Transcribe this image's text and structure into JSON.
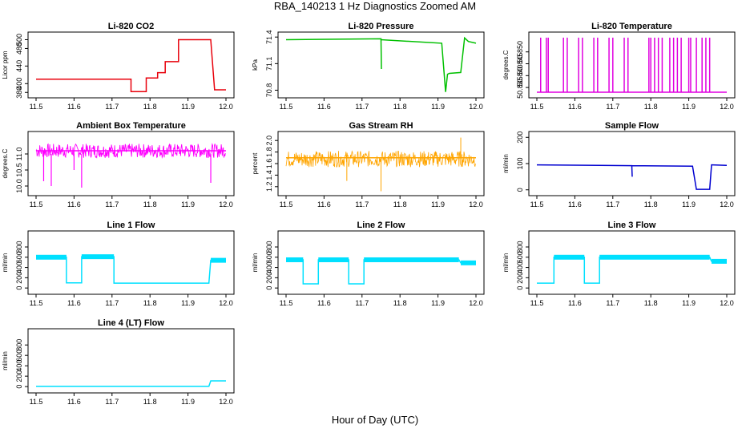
{
  "figure": {
    "title": "RBA_140213  1 Hz Diagnostics Zoomed AM",
    "xlabel": "Hour of Day (UTC)"
  },
  "chart_data": [
    {
      "type": "line",
      "title": "Li-820 CO2",
      "ylabel": "Licor ppm",
      "color": "#e8000b",
      "xlim": [
        11.5,
        12.0
      ],
      "ylim": [
        375,
        510
      ],
      "x_ticks": [
        "11.5",
        "11.6",
        "11.7",
        "11.8",
        "11.9",
        "12.0"
      ],
      "y_ticks": [
        "380",
        "400",
        "440",
        "480",
        "500"
      ],
      "series": [
        {
          "x": [
            11.5,
            11.75,
            11.75,
            11.79,
            11.79,
            11.82,
            11.82,
            11.84,
            11.84,
            11.875,
            11.875,
            11.96,
            11.97,
            12.0
          ],
          "y": [
            410,
            410,
            382,
            382,
            413,
            413,
            425,
            425,
            450,
            450,
            500,
            500,
            386,
            386
          ]
        }
      ]
    },
    {
      "type": "line",
      "title": "Li-820 Pressure",
      "ylabel": "kPa",
      "color": "#00c000",
      "xlim": [
        11.5,
        12.0
      ],
      "ylim": [
        70.75,
        71.42
      ],
      "x_ticks": [
        "11.5",
        "11.6",
        "11.7",
        "11.8",
        "11.9",
        "12.0"
      ],
      "y_ticks": [
        "70.8",
        "71.1",
        "71.4"
      ],
      "series": [
        {
          "x": [
            11.5,
            11.75,
            11.75,
            11.751,
            11.75,
            11.91,
            11.92,
            11.925,
            11.93,
            11.96,
            11.97,
            11.98,
            12.0
          ],
          "y": [
            71.37,
            71.38,
            71.37,
            71.04,
            71.37,
            71.33,
            70.78,
            70.98,
            70.99,
            71.0,
            71.39,
            71.35,
            71.33
          ]
        }
      ]
    },
    {
      "type": "line",
      "title": "Li-820 Temperature",
      "ylabel": "degrees.C",
      "color": "#e000e0",
      "xlim": [
        11.5,
        12.0
      ],
      "ylim": [
        50.832,
        50.857
      ],
      "x_ticks": [
        "11.5",
        "11.6",
        "11.7",
        "11.8",
        "11.9",
        "12.0"
      ],
      "y_ticks": [
        "50.835",
        "50.840",
        "50.845",
        "50.850"
      ],
      "series": [
        {
          "x": [
            11.5,
            12.0
          ],
          "y": [
            50.833,
            50.833
          ]
        }
      ]
    },
    {
      "type": "line",
      "title": "Ambient Box Temperature",
      "ylabel": "degrees.C",
      "color": "#ff00ff",
      "xlim": [
        11.5,
        12.0
      ],
      "ylim": [
        9.8,
        11.6
      ],
      "x_ticks": [
        "11.5",
        "11.6",
        "11.7",
        "11.8",
        "11.9",
        "12.0"
      ],
      "y_ticks": [
        "10.0",
        "10.5",
        "11.0"
      ],
      "series": [
        {
          "x": [
            11.5,
            12.0
          ],
          "y": [
            11.1,
            11.1
          ]
        }
      ]
    },
    {
      "type": "line",
      "title": "Gas Stream RH",
      "ylabel": "percent",
      "color": "#ffa500",
      "xlim": [
        11.5,
        12.0
      ],
      "ylim": [
        1.1,
        2.1
      ],
      "x_ticks": [
        "11.5",
        "11.6",
        "11.7",
        "11.8",
        "11.9",
        "12.0"
      ],
      "y_ticks": [
        "1.2",
        "1.4",
        "1.6",
        "1.8",
        "2.0"
      ],
      "series": [
        {
          "x": [
            11.5,
            12.0
          ],
          "y": [
            1.7,
            1.7
          ]
        }
      ]
    },
    {
      "type": "line",
      "title": "Sample Flow",
      "ylabel": "ml/min",
      "color": "#0000d0",
      "xlim": [
        11.5,
        12.0
      ],
      "ylim": [
        -10,
        210
      ],
      "x_ticks": [
        "11.5",
        "11.6",
        "11.7",
        "11.8",
        "11.9",
        "12.0"
      ],
      "y_ticks": [
        "0",
        "100",
        "200"
      ],
      "series": [
        {
          "x": [
            11.5,
            11.75,
            11.75,
            11.751,
            11.75,
            11.91,
            11.92,
            11.955,
            11.96,
            12.0
          ],
          "y": [
            95,
            92,
            92,
            50,
            92,
            90,
            2,
            2,
            95,
            93
          ]
        }
      ]
    },
    {
      "type": "line",
      "title": "Line 1 Flow",
      "ylabel": "ml/min",
      "color": "#00e0ff",
      "xlim": [
        11.5,
        12.0
      ],
      "ylim": [
        -60,
        1050
      ],
      "x_ticks": [
        "11.5",
        "11.6",
        "11.7",
        "11.8",
        "11.9",
        "12.0"
      ],
      "y_ticks": [
        "0",
        "200",
        "400",
        "600",
        "800"
      ],
      "series": [
        {
          "x": [
            11.5,
            11.58,
            11.58,
            11.62,
            11.62,
            11.705,
            11.705,
            11.955,
            11.96,
            12.0
          ],
          "y": [
            600,
            600,
            100,
            100,
            610,
            610,
            95,
            95,
            540,
            540
          ]
        }
      ]
    },
    {
      "type": "line",
      "title": "Line 2 Flow",
      "ylabel": "ml/min",
      "color": "#00e0ff",
      "xlim": [
        11.5,
        12.0
      ],
      "ylim": [
        -60,
        1050
      ],
      "x_ticks": [
        "11.5",
        "11.6",
        "11.7",
        "11.8",
        "11.9",
        "12.0"
      ],
      "y_ticks": [
        "0",
        "200",
        "400",
        "600",
        "800"
      ],
      "series": [
        {
          "x": [
            11.5,
            11.545,
            11.545,
            11.585,
            11.585,
            11.665,
            11.665,
            11.705,
            11.705,
            11.955,
            11.96,
            12.0
          ],
          "y": [
            550,
            550,
            80,
            80,
            550,
            550,
            80,
            80,
            550,
            550,
            490,
            490
          ]
        }
      ]
    },
    {
      "type": "line",
      "title": "Line 3 Flow",
      "ylabel": "ml/min",
      "color": "#00e0ff",
      "xlim": [
        11.5,
        12.0
      ],
      "ylim": [
        -60,
        1050
      ],
      "x_ticks": [
        "11.5",
        "11.6",
        "11.7",
        "11.8",
        "11.9",
        "12.0"
      ],
      "y_ticks": [
        "0",
        "200",
        "400",
        "600",
        "800"
      ],
      "series": [
        {
          "x": [
            11.5,
            11.545,
            11.545,
            11.625,
            11.625,
            11.665,
            11.665,
            11.955,
            11.96,
            12.0
          ],
          "y": [
            95,
            95,
            600,
            600,
            95,
            95,
            600,
            600,
            520,
            520
          ]
        }
      ]
    },
    {
      "type": "line",
      "title": "Line 4 (LT) Flow",
      "ylabel": "ml/min",
      "color": "#00e0ff",
      "xlim": [
        11.5,
        12.0
      ],
      "ylim": [
        -60,
        1050
      ],
      "x_ticks": [
        "11.5",
        "11.6",
        "11.7",
        "11.8",
        "11.9",
        "12.0"
      ],
      "y_ticks": [
        "0",
        "200",
        "400",
        "600",
        "800"
      ],
      "series": [
        {
          "x": [
            11.5,
            11.955,
            11.96,
            12.0
          ],
          "y": [
            5,
            5,
            110,
            110
          ]
        }
      ]
    }
  ]
}
